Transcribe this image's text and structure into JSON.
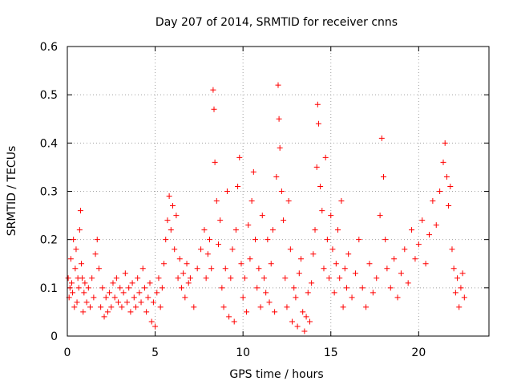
{
  "chart_data": {
    "type": "scatter",
    "title": "Day 207 of 2014, SRMTID for receiver cnns",
    "xlabel": "GPS time / hours",
    "ylabel": "SRMTID / TECUs",
    "xlim": [
      0,
      24
    ],
    "ylim": [
      0,
      0.6
    ],
    "x_ticks": [
      0,
      5,
      10,
      15,
      20
    ],
    "x_tick_labels": [
      "0",
      "5",
      "10",
      "15",
      "20"
    ],
    "y_ticks": [
      0,
      0.1,
      0.2,
      0.3,
      0.4,
      0.5,
      0.6
    ],
    "y_tick_labels": [
      "0",
      "0.1",
      "0.2",
      "0.3",
      "0.4",
      "0.5",
      "0.6"
    ],
    "grid": true,
    "marker": "plus",
    "color": "#ff0000",
    "series": [
      {
        "name": "SRMTID",
        "points": [
          [
            0.05,
            0.12
          ],
          [
            0.1,
            0.08
          ],
          [
            0.15,
            0.1
          ],
          [
            0.2,
            0.16
          ],
          [
            0.25,
            0.11
          ],
          [
            0.3,
            0.09
          ],
          [
            0.35,
            0.2
          ],
          [
            0.4,
            0.06
          ],
          [
            0.45,
            0.14
          ],
          [
            0.5,
            0.18
          ],
          [
            0.55,
            0.07
          ],
          [
            0.6,
            0.12
          ],
          [
            0.65,
            0.1
          ],
          [
            0.7,
            0.22
          ],
          [
            0.75,
            0.26
          ],
          [
            0.8,
            0.15
          ],
          [
            0.85,
            0.12
          ],
          [
            0.9,
            0.05
          ],
          [
            0.95,
            0.09
          ],
          [
            1.0,
            0.11
          ],
          [
            1.1,
            0.07
          ],
          [
            1.2,
            0.1
          ],
          [
            1.3,
            0.06
          ],
          [
            1.4,
            0.12
          ],
          [
            1.5,
            0.08
          ],
          [
            1.6,
            0.17
          ],
          [
            1.7,
            0.2
          ],
          [
            1.8,
            0.14
          ],
          [
            1.9,
            0.06
          ],
          [
            2.0,
            0.1
          ],
          [
            2.1,
            0.04
          ],
          [
            2.2,
            0.08
          ],
          [
            2.3,
            0.05
          ],
          [
            2.4,
            0.09
          ],
          [
            2.5,
            0.06
          ],
          [
            2.6,
            0.11
          ],
          [
            2.7,
            0.08
          ],
          [
            2.8,
            0.12
          ],
          [
            2.9,
            0.07
          ],
          [
            3.0,
            0.1
          ],
          [
            3.1,
            0.06
          ],
          [
            3.2,
            0.09
          ],
          [
            3.3,
            0.13
          ],
          [
            3.4,
            0.07
          ],
          [
            3.5,
            0.1
          ],
          [
            3.6,
            0.05
          ],
          [
            3.7,
            0.11
          ],
          [
            3.8,
            0.08
          ],
          [
            3.9,
            0.06
          ],
          [
            4.0,
            0.12
          ],
          [
            4.1,
            0.09
          ],
          [
            4.2,
            0.07
          ],
          [
            4.3,
            0.14
          ],
          [
            4.4,
            0.1
          ],
          [
            4.5,
            0.05
          ],
          [
            4.6,
            0.08
          ],
          [
            4.7,
            0.11
          ],
          [
            4.8,
            0.03
          ],
          [
            4.9,
            0.07
          ],
          [
            5.0,
            0.02
          ],
          [
            5.1,
            0.09
          ],
          [
            5.2,
            0.12
          ],
          [
            5.3,
            0.06
          ],
          [
            5.4,
            0.1
          ],
          [
            5.5,
            0.15
          ],
          [
            5.6,
            0.2
          ],
          [
            5.7,
            0.24
          ],
          [
            5.8,
            0.29
          ],
          [
            5.9,
            0.22
          ],
          [
            6.0,
            0.27
          ],
          [
            6.1,
            0.18
          ],
          [
            6.2,
            0.25
          ],
          [
            6.3,
            0.12
          ],
          [
            6.4,
            0.16
          ],
          [
            6.5,
            0.1
          ],
          [
            6.6,
            0.13
          ],
          [
            6.7,
            0.08
          ],
          [
            6.8,
            0.15
          ],
          [
            6.9,
            0.11
          ],
          [
            7.0,
            0.12
          ],
          [
            7.2,
            0.06
          ],
          [
            7.4,
            0.14
          ],
          [
            7.6,
            0.18
          ],
          [
            7.8,
            0.22
          ],
          [
            7.9,
            0.12
          ],
          [
            8.0,
            0.17
          ],
          [
            8.1,
            0.2
          ],
          [
            8.2,
            0.14
          ],
          [
            8.3,
            0.51
          ],
          [
            8.35,
            0.47
          ],
          [
            8.4,
            0.36
          ],
          [
            8.5,
            0.28
          ],
          [
            8.6,
            0.19
          ],
          [
            8.7,
            0.24
          ],
          [
            8.8,
            0.1
          ],
          [
            8.9,
            0.06
          ],
          [
            9.0,
            0.14
          ],
          [
            9.1,
            0.3
          ],
          [
            9.2,
            0.04
          ],
          [
            9.3,
            0.12
          ],
          [
            9.4,
            0.18
          ],
          [
            9.5,
            0.03
          ],
          [
            9.6,
            0.22
          ],
          [
            9.7,
            0.31
          ],
          [
            9.8,
            0.37
          ],
          [
            9.9,
            0.15
          ],
          [
            10.0,
            0.08
          ],
          [
            10.1,
            0.12
          ],
          [
            10.2,
            0.05
          ],
          [
            10.3,
            0.23
          ],
          [
            10.4,
            0.16
          ],
          [
            10.5,
            0.28
          ],
          [
            10.6,
            0.34
          ],
          [
            10.7,
            0.2
          ],
          [
            10.8,
            0.1
          ],
          [
            10.9,
            0.14
          ],
          [
            11.0,
            0.06
          ],
          [
            11.1,
            0.25
          ],
          [
            11.2,
            0.12
          ],
          [
            11.3,
            0.09
          ],
          [
            11.4,
            0.2
          ],
          [
            11.5,
            0.07
          ],
          [
            11.6,
            0.15
          ],
          [
            11.7,
            0.22
          ],
          [
            11.8,
            0.05
          ],
          [
            11.9,
            0.33
          ],
          [
            12.0,
            0.52
          ],
          [
            12.05,
            0.45
          ],
          [
            12.1,
            0.39
          ],
          [
            12.2,
            0.3
          ],
          [
            12.3,
            0.24
          ],
          [
            12.4,
            0.12
          ],
          [
            12.5,
            0.06
          ],
          [
            12.6,
            0.28
          ],
          [
            12.7,
            0.18
          ],
          [
            12.8,
            0.03
          ],
          [
            12.9,
            0.1
          ],
          [
            13.0,
            0.08
          ],
          [
            13.1,
            0.02
          ],
          [
            13.2,
            0.13
          ],
          [
            13.3,
            0.16
          ],
          [
            13.4,
            0.05
          ],
          [
            13.5,
            0.01
          ],
          [
            13.6,
            0.04
          ],
          [
            13.7,
            0.09
          ],
          [
            13.8,
            0.03
          ],
          [
            13.9,
            0.11
          ],
          [
            14.0,
            0.17
          ],
          [
            14.1,
            0.22
          ],
          [
            14.2,
            0.35
          ],
          [
            14.25,
            0.48
          ],
          [
            14.3,
            0.44
          ],
          [
            14.4,
            0.31
          ],
          [
            14.5,
            0.26
          ],
          [
            14.6,
            0.14
          ],
          [
            14.7,
            0.37
          ],
          [
            14.8,
            0.2
          ],
          [
            14.9,
            0.12
          ],
          [
            15.0,
            0.25
          ],
          [
            15.1,
            0.18
          ],
          [
            15.2,
            0.09
          ],
          [
            15.3,
            0.15
          ],
          [
            15.4,
            0.22
          ],
          [
            15.5,
            0.12
          ],
          [
            15.6,
            0.28
          ],
          [
            15.7,
            0.06
          ],
          [
            15.8,
            0.14
          ],
          [
            15.9,
            0.1
          ],
          [
            16.0,
            0.17
          ],
          [
            16.2,
            0.08
          ],
          [
            16.4,
            0.13
          ],
          [
            16.6,
            0.2
          ],
          [
            16.8,
            0.1
          ],
          [
            17.0,
            0.06
          ],
          [
            17.2,
            0.15
          ],
          [
            17.4,
            0.09
          ],
          [
            17.6,
            0.12
          ],
          [
            17.8,
            0.25
          ],
          [
            17.9,
            0.41
          ],
          [
            18.0,
            0.33
          ],
          [
            18.1,
            0.2
          ],
          [
            18.2,
            0.14
          ],
          [
            18.4,
            0.1
          ],
          [
            18.6,
            0.16
          ],
          [
            18.8,
            0.08
          ],
          [
            19.0,
            0.13
          ],
          [
            19.2,
            0.18
          ],
          [
            19.4,
            0.11
          ],
          [
            19.6,
            0.22
          ],
          [
            19.8,
            0.16
          ],
          [
            20.0,
            0.19
          ],
          [
            20.2,
            0.24
          ],
          [
            20.4,
            0.15
          ],
          [
            20.6,
            0.21
          ],
          [
            20.8,
            0.28
          ],
          [
            21.0,
            0.23
          ],
          [
            21.2,
            0.3
          ],
          [
            21.4,
            0.36
          ],
          [
            21.5,
            0.4
          ],
          [
            21.6,
            0.33
          ],
          [
            21.7,
            0.27
          ],
          [
            21.8,
            0.31
          ],
          [
            21.9,
            0.18
          ],
          [
            22.0,
            0.14
          ],
          [
            22.1,
            0.09
          ],
          [
            22.2,
            0.12
          ],
          [
            22.3,
            0.06
          ],
          [
            22.4,
            0.1
          ],
          [
            22.5,
            0.13
          ],
          [
            22.6,
            0.08
          ]
        ]
      }
    ]
  }
}
